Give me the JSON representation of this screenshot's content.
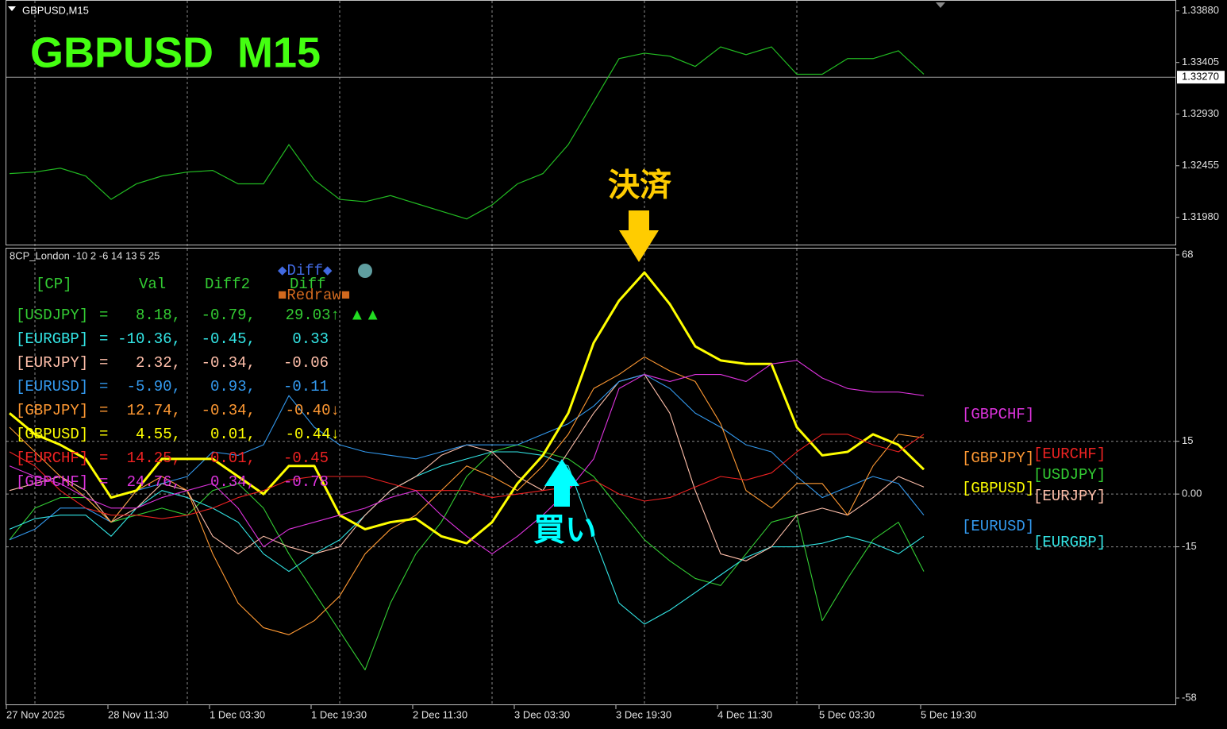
{
  "chart_data": [
    {
      "type": "line",
      "title": "GBPUSD,M15",
      "heading": "GBPUSD  M15",
      "color": "#22bb22",
      "values": [
        1.32383,
        1.32397,
        1.32433,
        1.32361,
        1.32146,
        1.32289,
        1.32361,
        1.32397,
        1.32412,
        1.32289,
        1.32289,
        1.32649,
        1.32325,
        1.32146,
        1.32124,
        1.32181,
        1.32109,
        1.32037,
        1.31966,
        1.32095,
        1.32289,
        1.32383,
        1.32649,
        1.33045,
        1.33441,
        1.33491,
        1.33463,
        1.33369,
        1.33549,
        1.33477,
        1.33549,
        1.33297,
        1.33297,
        1.33441,
        1.33441,
        1.33513,
        1.33297
      ],
      "ylim": [
        1.3173,
        1.3398
      ],
      "yticks": [
        {
          "value": 1.3388,
          "label": "1.33880"
        },
        1.33405,
        {
          "value": 1.3293,
          "label": "1.32930"
        },
        1.32455,
        {
          "value": 1.3198,
          "label": "1.31980"
        }
      ],
      "current_price": {
        "value": 1.3327,
        "label": "1.33270"
      }
    },
    {
      "type": "line",
      "title": "8CP_London -10 2 -6 14 13 5 25",
      "categories": [
        "27 Nov 2025",
        null,
        null,
        null,
        "28 Nov 11:30",
        null,
        null,
        null,
        "1 Dec 03:30",
        null,
        null,
        null,
        "1 Dec 19:30",
        null,
        null,
        null,
        "2 Dec 11:30",
        null,
        null,
        null,
        "3 Dec 03:30",
        null,
        null,
        null,
        "3 Dec 19:30",
        null,
        null,
        null,
        "4 Dec 11:30",
        null,
        null,
        null,
        "5 Dec 03:30",
        null,
        null,
        null,
        "5 Dec 19:30"
      ],
      "series": [
        {
          "name": "[USDJPY]",
          "color": "#33cc33",
          "values": [
            -13,
            -4,
            -1,
            -1,
            -8,
            -6,
            -4,
            -6,
            1,
            3,
            -4,
            -17,
            -28,
            -39,
            -50,
            -31,
            -17,
            -8,
            5,
            12,
            14,
            12,
            10,
            5,
            -4,
            -13,
            -19,
            -24,
            -26,
            -17,
            -8,
            -6,
            -36,
            -24,
            -13,
            -8,
            -22
          ]
        },
        {
          "name": "[EURGBP]",
          "color": "#33e6e6",
          "values": [
            -10,
            -7,
            -6,
            -6,
            -12,
            -4,
            1,
            -1,
            -4,
            -8,
            -17,
            -22,
            -17,
            -13,
            -6,
            1,
            5,
            8,
            10,
            12,
            12,
            11,
            8,
            -12,
            -31,
            -37,
            -33,
            -28,
            -23,
            -18,
            -15,
            -15,
            -14,
            -12,
            -14,
            -17,
            -12
          ]
        },
        {
          "name": "[EURJPY]",
          "color": "#ffbfaa",
          "values": [
            1,
            3,
            5,
            1,
            -8,
            -4,
            3,
            1,
            -12,
            -17,
            -12,
            -15,
            -17,
            -15,
            -6,
            1,
            5,
            11,
            14,
            12,
            5,
            1,
            12,
            23,
            32,
            34,
            23,
            1,
            -17,
            -19,
            -15,
            -6,
            -4,
            -6,
            -1,
            5,
            2
          ]
        },
        {
          "name": "[EURUSD]",
          "color": "#3399ee",
          "values": [
            -13,
            -10,
            -4,
            -4,
            -8,
            1,
            3,
            5,
            12,
            11,
            14,
            28,
            19,
            14,
            12,
            11,
            10,
            12,
            14,
            14,
            14,
            17,
            20,
            25,
            32,
            34,
            30,
            23,
            19,
            14,
            12,
            5,
            -1,
            2,
            5,
            3,
            -6
          ]
        },
        {
          "name": "[GBPJPY]",
          "color": "#ff9933",
          "values": [
            19,
            12,
            5,
            -1,
            -8,
            1,
            5,
            1,
            -17,
            -31,
            -38,
            -40,
            -36,
            -29,
            -17,
            -10,
            -6,
            1,
            8,
            5,
            1,
            8,
            17,
            30,
            34,
            39,
            35,
            32,
            20,
            1,
            -4,
            3,
            3,
            -6,
            8,
            17,
            16
          ]
        },
        {
          "name": "[GBPUSD]",
          "color": "#ffff00",
          "width": 3,
          "values": [
            23,
            17,
            14,
            10,
            -1,
            1,
            10,
            10,
            10,
            5,
            0,
            8,
            8,
            -6,
            -10,
            -8,
            -7,
            -12,
            -14,
            -8,
            3,
            11,
            23,
            43,
            55,
            63,
            54,
            42,
            38,
            37,
            37,
            19,
            11,
            12,
            17,
            14,
            7
          ]
        },
        {
          "name": "[EURCHF]",
          "color": "#ee2222",
          "values": [
            12,
            8,
            1,
            -4,
            -6,
            -6,
            -7,
            -6,
            -4,
            -1,
            1,
            4,
            5,
            5,
            5,
            3,
            1,
            1,
            1,
            -1,
            0,
            1,
            2,
            4,
            0,
            -2,
            -1,
            2,
            5,
            4,
            6,
            12,
            17,
            17,
            14,
            12,
            17
          ]
        },
        {
          "name": "[GBPCHF]",
          "color": "#dd33dd",
          "values": [
            8,
            5,
            3,
            -1,
            -4,
            -4,
            -1,
            1,
            3,
            -4,
            -15,
            -10,
            -8,
            -6,
            -4,
            -1,
            1,
            -6,
            -12,
            -17,
            -12,
            -6,
            1,
            10,
            30,
            34,
            32,
            34,
            34,
            32,
            37,
            38,
            33,
            30,
            29,
            29,
            28
          ]
        }
      ],
      "ylim": [
        -58,
        68
      ],
      "yticks": [
        68,
        15,
        {
          "value": 0,
          "label": "0.00"
        },
        -15,
        -58
      ],
      "grid": true,
      "table": {
        "header": [
          "[CP]",
          "Val",
          "Diff2",
          "Diff"
        ],
        "rows": [
          [
            "=",
            "8.18,",
            "-0.79,",
            "29.03↑"
          ],
          [
            "=",
            "-10.36,",
            "-0.45,",
            "0.33"
          ],
          [
            "=",
            "2.32,",
            "-0.34,",
            "-0.06"
          ],
          [
            "=",
            "-5.90,",
            "0.93,",
            "-0.11"
          ],
          [
            "=",
            "12.74,",
            "-0.34,",
            "-0.40↓"
          ],
          [
            "=",
            "4.55,",
            "0.01,",
            "-0.44↓"
          ],
          [
            "=",
            "14.25,",
            "0.01,",
            "-0.45"
          ],
          [
            "=",
            "24.76,",
            "0.34,",
            "-0.78"
          ]
        ]
      },
      "buttons": [
        "◆Diff◆",
        "■Redraw■"
      ],
      "signal": "▲▲",
      "annotations": [
        {
          "text": "決済",
          "color": "#ffcc00"
        },
        {
          "text": "買い",
          "color": "#00ffff"
        }
      ]
    }
  ]
}
